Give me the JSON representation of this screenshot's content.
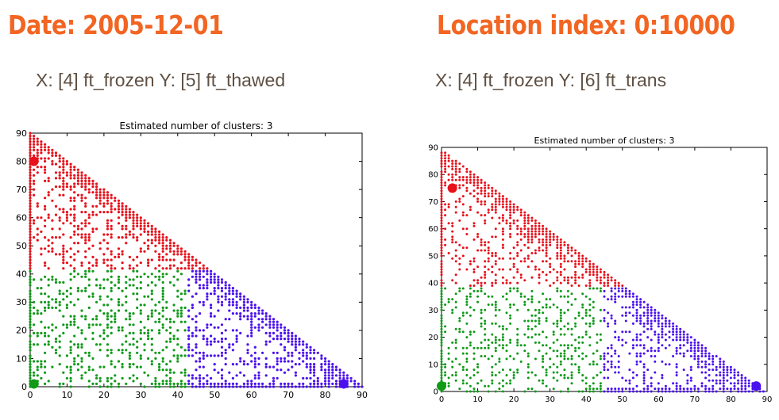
{
  "headings": {
    "date": "Date: 2005-12-01",
    "location": "Location index: 0:10000"
  },
  "subtitles": {
    "left": "X: [4] ft_frozen  Y: [5] ft_thawed",
    "right": "X: [4] ft_frozen   Y: [6] ft_trans"
  },
  "colors": {
    "cluster_red": "#e8101a",
    "cluster_green": "#0f9a18",
    "cluster_blue": "#4a10ee",
    "heading_orange": "#f26522"
  },
  "chart_data": [
    {
      "type": "scatter",
      "title": "Estimated number of clusters: 3",
      "xlabel": "",
      "ylabel": "",
      "xlim": [
        0,
        90
      ],
      "ylim": [
        0,
        90
      ],
      "xticks": [
        0,
        10,
        20,
        30,
        40,
        50,
        60,
        70,
        80,
        90
      ],
      "yticks": [
        0,
        10,
        20,
        30,
        40,
        50,
        60,
        70,
        80,
        90
      ],
      "grid": false,
      "legend": "none",
      "boundary": "x+y<=90",
      "clusters": [
        {
          "color": "#e8101a",
          "region": "y>=42",
          "center": [
            1,
            80
          ]
        },
        {
          "color": "#0f9a18",
          "region": "y<42,x<43",
          "center": [
            1,
            1
          ]
        },
        {
          "color": "#4a10ee",
          "region": "y<42,x>=43",
          "center": [
            85,
            1
          ]
        }
      ]
    },
    {
      "type": "scatter",
      "title": "Estimated number of clusters: 3",
      "xlabel": "",
      "ylabel": "",
      "xlim": [
        0,
        90
      ],
      "ylim": [
        0,
        90
      ],
      "xticks": [
        0,
        10,
        20,
        30,
        40,
        50,
        60,
        70,
        80,
        90
      ],
      "yticks": [
        0,
        10,
        20,
        30,
        40,
        50,
        60,
        70,
        80,
        90
      ],
      "grid": false,
      "legend": "none",
      "boundary": "x+y<=89",
      "clusters": [
        {
          "color": "#e8101a",
          "region": "y>=39",
          "center": [
            3,
            75
          ]
        },
        {
          "color": "#0f9a18",
          "region": "y<39,x<45",
          "center": [
            0,
            2
          ]
        },
        {
          "color": "#4a10ee",
          "region": "y<39,x>=45",
          "center": [
            87,
            2
          ]
        }
      ]
    }
  ]
}
